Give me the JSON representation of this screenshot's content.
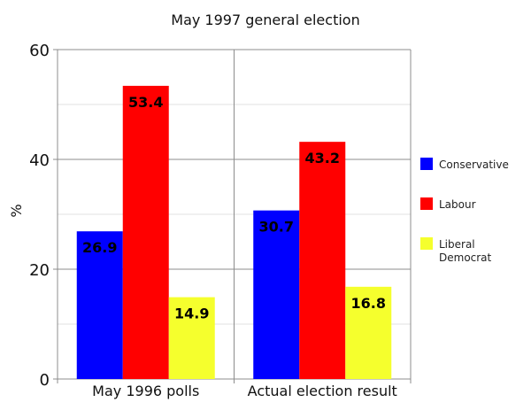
{
  "chart_data": {
    "type": "bar",
    "title": "May 1997 general election",
    "xlabel": "",
    "ylabel": "%",
    "ylim": [
      0,
      60
    ],
    "yticks": [
      0,
      20,
      40,
      60
    ],
    "grid": true,
    "legend_position": "right",
    "categories": [
      "May 1996 polls",
      "Actual election result"
    ],
    "series": [
      {
        "name": "Conservative",
        "color": "#0000ff",
        "values": [
          26.9,
          30.7
        ]
      },
      {
        "name": "Labour",
        "color": "#ff0000",
        "values": [
          53.4,
          43.2
        ]
      },
      {
        "name": "Liberal Democrat",
        "color": "#f5ff2d",
        "values": [
          14.9,
          16.8
        ]
      }
    ]
  }
}
